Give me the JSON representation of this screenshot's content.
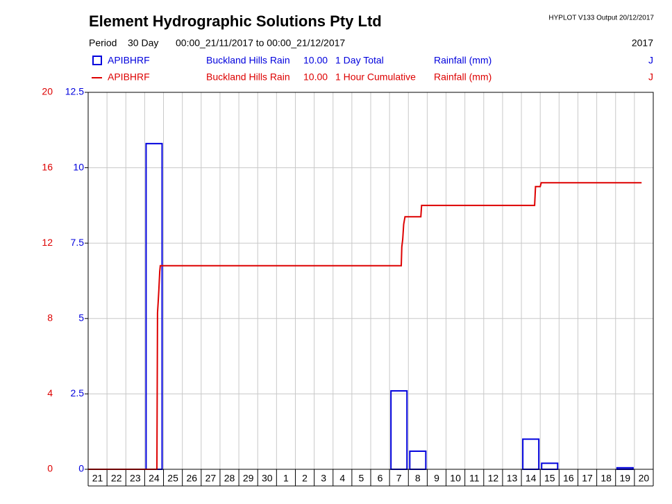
{
  "header": {
    "title": "Element Hydrographic Solutions Pty Ltd",
    "program": "HYPLOT V133  Output 20/12/2017",
    "period_label": "Period",
    "period": "30 Day",
    "range": "00:00_21/11/2017 to 00:00_21/12/2017",
    "year": "2017"
  },
  "chart_data": {
    "type": "bar",
    "categories": [
      "21",
      "22",
      "23",
      "24",
      "25",
      "26",
      "27",
      "28",
      "29",
      "30",
      "1",
      "2",
      "3",
      "4",
      "5",
      "6",
      "7",
      "8",
      "9",
      "10",
      "11",
      "12",
      "13",
      "14",
      "15",
      "16",
      "17",
      "18",
      "19",
      "20"
    ],
    "ylim": [
      0,
      12.5
    ],
    "yticks": [
      0,
      2.5,
      5,
      7.5,
      10,
      12.5
    ],
    "y2lim": [
      0,
      20
    ],
    "y2ticks": [
      0,
      4,
      8,
      12,
      16,
      20
    ],
    "xlim": [
      0,
      30
    ],
    "grid": true,
    "series": [
      {
        "name": "APIBHRF",
        "site": "Buckland Hills Rain",
        "interval": "10.00",
        "kind": "1 Day Total",
        "variable": "Rainfall (mm)",
        "flag": "J",
        "color": "#0000dd",
        "values": [
          0,
          0,
          0,
          10.8,
          0,
          0,
          0,
          0,
          0,
          0,
          0,
          0,
          0,
          0,
          0,
          0,
          2.6,
          0.6,
          0,
          0,
          0,
          0,
          0,
          1.0,
          0.2,
          0,
          0,
          0,
          0.05,
          0
        ]
      },
      {
        "name": "APIBHRF",
        "site": "Buckland Hills Rain",
        "interval": "10.00",
        "kind": "1 Hour Cumulative",
        "variable": "Rainfall (mm)",
        "flag": "J",
        "color": "#dd0000",
        "axis": "y2",
        "type": "line",
        "x": [
          0,
          3.65,
          3.68,
          3.72,
          3.75,
          3.8,
          3.83,
          16.62,
          16.65,
          16.7,
          16.75,
          16.82,
          16.9,
          17.66,
          17.7,
          23.7,
          23.75,
          24.0,
          24.05,
          29.38
        ],
        "values": [
          0,
          0,
          8.3,
          8.9,
          9.5,
          10.5,
          10.8,
          10.8,
          11.8,
          12.2,
          13.0,
          13.4,
          13.4,
          13.4,
          14.0,
          14.0,
          15.0,
          15.0,
          15.2,
          15.2
        ]
      }
    ]
  }
}
